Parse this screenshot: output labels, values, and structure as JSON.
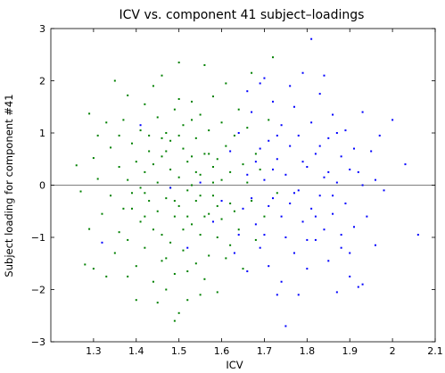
{
  "chart_data": {
    "type": "scatter",
    "title": "ICV vs. component 41 subject–loadings",
    "xlabel": "ICV",
    "ylabel": "Subject loading for component #41",
    "xlim": [
      1.2,
      2.1
    ],
    "ylim": [
      -3,
      3
    ],
    "xticks": [
      "1.3",
      "1.4",
      "1.5",
      "1.6",
      "1.7",
      "1.8",
      "1.9",
      "2",
      "2.1"
    ],
    "yticks": [
      "3",
      "2",
      "1",
      "0",
      "−1",
      "−2",
      "−3"
    ],
    "xtick_values": [
      1.3,
      1.4,
      1.5,
      1.6,
      1.7,
      1.8,
      1.9,
      2.0,
      2.1
    ],
    "ytick_values": [
      3,
      2,
      1,
      0,
      -1,
      -2,
      -3
    ],
    "reference_line_y": 0,
    "grid": false,
    "series": [
      {
        "color": "#008000",
        "points": [
          [
            1.26,
            0.38
          ],
          [
            1.27,
            -0.12
          ],
          [
            1.28,
            -1.52
          ],
          [
            1.29,
            1.37
          ],
          [
            1.29,
            -0.84
          ],
          [
            1.3,
            0.52
          ],
          [
            1.3,
            -1.6
          ],
          [
            1.31,
            0.95
          ],
          [
            1.31,
            0.12
          ],
          [
            1.32,
            -0.55
          ],
          [
            1.33,
            1.2
          ],
          [
            1.33,
            -1.75
          ],
          [
            1.34,
            0.72
          ],
          [
            1.34,
            -0.2
          ],
          [
            1.35,
            -1.3
          ],
          [
            1.35,
            2.0
          ],
          [
            1.36,
            0.35
          ],
          [
            1.36,
            -0.9
          ],
          [
            1.37,
            1.25
          ],
          [
            1.37,
            -0.45
          ],
          [
            1.38,
            0.1
          ],
          [
            1.38,
            -1.05
          ],
          [
            1.38,
            1.72
          ],
          [
            1.39,
            0.8
          ],
          [
            1.39,
            -0.15
          ],
          [
            1.4,
            -1.55
          ],
          [
            1.4,
            0.45
          ],
          [
            1.4,
            -2.2
          ],
          [
            1.41,
            1.05
          ],
          [
            1.41,
            -0.7
          ],
          [
            1.42,
            0.25
          ],
          [
            1.42,
            -1.2
          ],
          [
            1.42,
            1.55
          ],
          [
            1.43,
            -0.3
          ],
          [
            1.43,
            0.65
          ],
          [
            1.44,
            -1.85
          ],
          [
            1.44,
            1.9
          ],
          [
            1.44,
            -0.85
          ],
          [
            1.45,
            0.05
          ],
          [
            1.45,
            1.3
          ],
          [
            1.45,
            -0.5
          ],
          [
            1.46,
            -1.45
          ],
          [
            1.46,
            0.55
          ],
          [
            1.46,
            2.1
          ],
          [
            1.47,
            -0.25
          ],
          [
            1.47,
            1.0
          ],
          [
            1.47,
            -2.0
          ],
          [
            1.48,
            0.3
          ],
          [
            1.48,
            -1.1
          ],
          [
            1.48,
            0.85
          ],
          [
            1.49,
            -0.6
          ],
          [
            1.49,
            1.45
          ],
          [
            1.49,
            -1.7
          ],
          [
            1.5,
            0.15
          ],
          [
            1.5,
            -0.4
          ],
          [
            1.5,
            2.35
          ],
          [
            1.5,
            -2.45
          ],
          [
            1.51,
            0.7
          ],
          [
            1.51,
            -1.25
          ],
          [
            1.51,
            1.15
          ],
          [
            1.52,
            -0.1
          ],
          [
            1.52,
            0.45
          ],
          [
            1.52,
            -2.2
          ],
          [
            1.53,
            -0.75
          ],
          [
            1.53,
            1.6
          ],
          [
            1.53,
            0.0
          ],
          [
            1.54,
            -1.5
          ],
          [
            1.54,
            0.9
          ],
          [
            1.54,
            -0.3
          ],
          [
            1.55,
            1.35
          ],
          [
            1.55,
            -0.95
          ],
          [
            1.55,
            0.2
          ],
          [
            1.56,
            -1.8
          ],
          [
            1.56,
            0.6
          ],
          [
            1.56,
            2.3
          ],
          [
            1.57,
            -0.55
          ],
          [
            1.57,
            1.05
          ],
          [
            1.57,
            -1.35
          ],
          [
            1.58,
            0.35
          ],
          [
            1.58,
            -0.2
          ],
          [
            1.58,
            1.7
          ],
          [
            1.59,
            -1.0
          ],
          [
            1.59,
            0.5
          ],
          [
            1.59,
            -2.05
          ],
          [
            1.6,
            0.1
          ],
          [
            1.6,
            1.2
          ],
          [
            1.6,
            -0.65
          ],
          [
            1.61,
            -1.4
          ],
          [
            1.61,
            0.75
          ],
          [
            1.61,
            1.95
          ],
          [
            1.62,
            -0.35
          ],
          [
            1.62,
            0.25
          ],
          [
            1.62,
            -1.15
          ],
          [
            1.63,
            0.95
          ],
          [
            1.63,
            -0.5
          ],
          [
            1.64,
            1.45
          ],
          [
            1.64,
            -0.85
          ],
          [
            1.65,
            0.4
          ],
          [
            1.65,
            -1.6
          ],
          [
            1.66,
            0.05
          ],
          [
            1.66,
            1.1
          ],
          [
            1.67,
            -0.3
          ],
          [
            1.67,
            2.15
          ],
          [
            1.68,
            0.6
          ],
          [
            1.68,
            -1.05
          ],
          [
            1.69,
            0.3
          ],
          [
            1.7,
            -0.6
          ],
          [
            1.71,
            1.25
          ],
          [
            1.72,
            2.45
          ],
          [
            1.73,
            -0.15
          ],
          [
            1.41,
            -0.05
          ],
          [
            1.43,
            0.95
          ],
          [
            1.46,
            -0.95
          ],
          [
            1.48,
            -0.05
          ],
          [
            1.5,
            0.95
          ],
          [
            1.52,
            -0.6
          ],
          [
            1.53,
            0.55
          ],
          [
            1.55,
            -0.2
          ],
          [
            1.57,
            0.6
          ],
          [
            1.59,
            -0.4
          ],
          [
            1.36,
            0.95
          ],
          [
            1.39,
            -0.45
          ],
          [
            1.42,
            -0.15
          ],
          [
            1.44,
            0.4
          ],
          [
            1.47,
            0.65
          ],
          [
            1.49,
            -0.3
          ],
          [
            1.51,
            -0.85
          ],
          [
            1.54,
            0.25
          ],
          [
            1.56,
            -0.6
          ],
          [
            1.58,
            0.05
          ],
          [
            1.45,
            -2.25
          ],
          [
            1.47,
            -1.4
          ],
          [
            1.49,
            -2.6
          ],
          [
            1.52,
            -1.65
          ],
          [
            1.55,
            -2.1
          ],
          [
            1.38,
            -1.75
          ],
          [
            1.42,
            -0.6
          ],
          [
            1.46,
            0.9
          ],
          [
            1.5,
            1.65
          ],
          [
            1.53,
            1.25
          ]
        ]
      },
      {
        "color": "#0000ff",
        "points": [
          [
            1.32,
            -1.1
          ],
          [
            1.41,
            1.15
          ],
          [
            1.48,
            -0.05
          ],
          [
            1.52,
            -1.2
          ],
          [
            1.55,
            0.05
          ],
          [
            1.58,
            -0.7
          ],
          [
            1.6,
            -0.3
          ],
          [
            1.62,
            0.65
          ],
          [
            1.63,
            -1.3
          ],
          [
            1.64,
            1.0
          ],
          [
            1.65,
            -0.45
          ],
          [
            1.66,
            0.2
          ],
          [
            1.66,
            -1.65
          ],
          [
            1.67,
            1.4
          ],
          [
            1.68,
            -0.75
          ],
          [
            1.68,
            0.45
          ],
          [
            1.69,
            -1.2
          ],
          [
            1.69,
            1.95
          ],
          [
            1.7,
            0.1
          ],
          [
            1.7,
            -0.95
          ],
          [
            1.71,
            0.85
          ],
          [
            1.71,
            -1.55
          ],
          [
            1.72,
            -0.25
          ],
          [
            1.72,
            1.6
          ],
          [
            1.73,
            0.5
          ],
          [
            1.73,
            -2.1
          ],
          [
            1.74,
            -0.6
          ],
          [
            1.74,
            1.15
          ],
          [
            1.75,
            0.2
          ],
          [
            1.75,
            -1.0
          ],
          [
            1.75,
            -2.7
          ],
          [
            1.76,
            0.75
          ],
          [
            1.76,
            -0.35
          ],
          [
            1.77,
            1.5
          ],
          [
            1.77,
            -1.3
          ],
          [
            1.78,
            -0.1
          ],
          [
            1.78,
            0.95
          ],
          [
            1.79,
            -0.7
          ],
          [
            1.79,
            2.15
          ],
          [
            1.8,
            0.35
          ],
          [
            1.8,
            -1.6
          ],
          [
            1.81,
            1.2
          ],
          [
            1.81,
            -0.45
          ],
          [
            1.81,
            2.8
          ],
          [
            1.82,
            0.6
          ],
          [
            1.82,
            -1.05
          ],
          [
            1.83,
            -0.2
          ],
          [
            1.83,
            1.75
          ],
          [
            1.84,
            0.15
          ],
          [
            1.84,
            -0.85
          ],
          [
            1.85,
            0.9
          ],
          [
            1.85,
            -1.45
          ],
          [
            1.86,
            1.35
          ],
          [
            1.86,
            -0.55
          ],
          [
            1.87,
            0.05
          ],
          [
            1.87,
            -2.05
          ],
          [
            1.88,
            0.55
          ],
          [
            1.88,
            -1.2
          ],
          [
            1.89,
            1.05
          ],
          [
            1.89,
            -0.35
          ],
          [
            1.9,
            0.3
          ],
          [
            1.9,
            -1.75
          ],
          [
            1.91,
            -0.8
          ],
          [
            1.91,
            0.7
          ],
          [
            1.92,
            -1.95
          ],
          [
            1.93,
            0.0
          ],
          [
            1.93,
            1.4
          ],
          [
            1.94,
            -0.6
          ],
          [
            1.95,
            0.65
          ],
          [
            1.96,
            -1.15
          ],
          [
            1.97,
            0.95
          ],
          [
            1.98,
            -0.1
          ],
          [
            2.0,
            1.25
          ],
          [
            2.03,
            0.4
          ],
          [
            2.06,
            -0.95
          ],
          [
            1.84,
            2.1
          ],
          [
            1.77,
            -0.15
          ],
          [
            1.79,
            0.45
          ],
          [
            1.73,
            0.95
          ],
          [
            1.86,
            -0.2
          ],
          [
            1.66,
            1.8
          ],
          [
            1.7,
            2.05
          ],
          [
            1.74,
            -1.85
          ],
          [
            1.82,
            -0.6
          ],
          [
            1.88,
            -0.95
          ],
          [
            1.92,
            0.25
          ],
          [
            1.71,
            -0.4
          ],
          [
            1.76,
            1.9
          ],
          [
            1.64,
            -0.95
          ],
          [
            1.69,
            0.7
          ],
          [
            1.8,
            -1.05
          ],
          [
            1.85,
            0.25
          ],
          [
            1.78,
            -2.1
          ],
          [
            1.93,
            -1.9
          ],
          [
            1.96,
            0.1
          ],
          [
            1.67,
            -0.25
          ],
          [
            1.72,
            0.3
          ],
          [
            1.83,
            0.75
          ],
          [
            1.87,
            1.0
          ],
          [
            1.9,
            -1.3
          ]
        ]
      }
    ]
  }
}
